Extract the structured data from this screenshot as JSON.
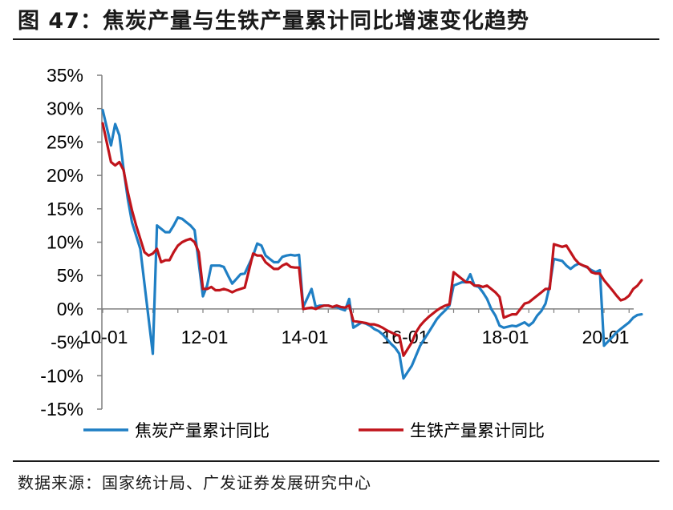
{
  "figure": {
    "title": "图 47：焦炭产量与生铁产量累计同比增速变化趋势",
    "source": "数据来源：国家统计局、广发证券发展研究中心"
  },
  "colors": {
    "coke": "#1f7fc4",
    "iron": "#c0141b",
    "axis": "#7f7f7f"
  },
  "chart_data": {
    "type": "line",
    "title": "",
    "xlabel": "",
    "ylabel": "",
    "ylim": [
      -15,
      35
    ],
    "yticks": [
      35,
      30,
      25,
      20,
      15,
      10,
      5,
      0,
      -5,
      -10,
      -15
    ],
    "ytick_labels": [
      "35%",
      "30%",
      "25%",
      "20%",
      "15%",
      "10%",
      "5%",
      "0%",
      "-5%",
      "-10%",
      "-15%"
    ],
    "x_start": "2010-01",
    "xticks": [
      "2010-01",
      "2012-01",
      "2014-01",
      "2016-01",
      "2018-01",
      "2020-01"
    ],
    "xtick_labels": [
      "10-01",
      "12-01",
      "14-01",
      "16-01",
      "18-01",
      "20-01"
    ],
    "grid": false,
    "legend": "bottom",
    "series": [
      {
        "name": "焦炭产量累计同比",
        "color": "#1f7fc4",
        "points": [
          [
            "2010-01",
            29.8
          ],
          [
            "2010-03",
            24.5
          ],
          [
            "2010-04",
            27.7
          ],
          [
            "2010-05",
            26.0
          ],
          [
            "2010-06",
            21.0
          ],
          [
            "2010-07",
            16.5
          ],
          [
            "2010-08",
            13.0
          ],
          [
            "2010-09",
            11.0
          ],
          [
            "2010-10",
            9.0
          ],
          [
            "2011-01",
            -6.7
          ],
          [
            "2011-02",
            12.5
          ],
          [
            "2011-03",
            12.0
          ],
          [
            "2011-04",
            11.5
          ],
          [
            "2011-05",
            11.5
          ],
          [
            "2011-06",
            12.5
          ],
          [
            "2011-07",
            13.7
          ],
          [
            "2011-08",
            13.5
          ],
          [
            "2011-09",
            13.0
          ],
          [
            "2011-10",
            12.5
          ],
          [
            "2011-11",
            11.8
          ],
          [
            "2012-01",
            1.9
          ],
          [
            "2012-02",
            3.5
          ],
          [
            "2012-03",
            6.5
          ],
          [
            "2012-04",
            6.5
          ],
          [
            "2012-05",
            6.5
          ],
          [
            "2012-06",
            6.3
          ],
          [
            "2012-07",
            5.0
          ],
          [
            "2012-08",
            3.8
          ],
          [
            "2012-09",
            4.5
          ],
          [
            "2012-10",
            5.2
          ],
          [
            "2012-11",
            5.3
          ],
          [
            "2013-01",
            8.0
          ],
          [
            "2013-02",
            9.8
          ],
          [
            "2013-03",
            9.5
          ],
          [
            "2013-04",
            8.0
          ],
          [
            "2013-05",
            7.5
          ],
          [
            "2013-06",
            7.0
          ],
          [
            "2013-07",
            7.0
          ],
          [
            "2013-08",
            7.8
          ],
          [
            "2013-09",
            8.0
          ],
          [
            "2013-10",
            8.1
          ],
          [
            "2013-11",
            8.0
          ],
          [
            "2013-12",
            8.1
          ],
          [
            "2014-01",
            0.3
          ],
          [
            "2014-03",
            3.0
          ],
          [
            "2014-04",
            0.3
          ],
          [
            "2014-05",
            0.5
          ],
          [
            "2014-06",
            0.5
          ],
          [
            "2014-07",
            0.5
          ],
          [
            "2014-08",
            0.3
          ],
          [
            "2014-09",
            0.3
          ],
          [
            "2014-10",
            0.0
          ],
          [
            "2014-11",
            -0.2
          ],
          [
            "2014-12",
            1.5
          ],
          [
            "2015-01",
            -2.8
          ],
          [
            "2015-03",
            -2.0
          ],
          [
            "2015-04",
            -2.2
          ],
          [
            "2015-05",
            -2.5
          ],
          [
            "2015-06",
            -3.0
          ],
          [
            "2015-07",
            -3.3
          ],
          [
            "2015-08",
            -3.8
          ],
          [
            "2015-09",
            -4.5
          ],
          [
            "2015-10",
            -5.2
          ],
          [
            "2015-11",
            -5.8
          ],
          [
            "2015-12",
            -6.7
          ],
          [
            "2016-01",
            -10.4
          ],
          [
            "2016-03",
            -8.5
          ],
          [
            "2016-04",
            -7.0
          ],
          [
            "2016-05",
            -5.5
          ],
          [
            "2016-06",
            -4.5
          ],
          [
            "2016-07",
            -3.5
          ],
          [
            "2016-08",
            -2.5
          ],
          [
            "2016-09",
            -1.5
          ],
          [
            "2016-10",
            -0.8
          ],
          [
            "2016-11",
            -0.2
          ],
          [
            "2016-12",
            0.5
          ],
          [
            "2017-01",
            3.5
          ],
          [
            "2017-03",
            4.0
          ],
          [
            "2017-04",
            4.0
          ],
          [
            "2017-05",
            5.2
          ],
          [
            "2017-06",
            3.5
          ],
          [
            "2017-07",
            3.3
          ],
          [
            "2017-08",
            2.5
          ],
          [
            "2017-09",
            1.5
          ],
          [
            "2017-10",
            0.0
          ],
          [
            "2017-11",
            -1.0
          ],
          [
            "2017-12",
            -2.5
          ],
          [
            "2018-01",
            -2.8
          ],
          [
            "2018-03",
            -2.5
          ],
          [
            "2018-04",
            -2.6
          ],
          [
            "2018-05",
            -2.3
          ],
          [
            "2018-06",
            -2.0
          ],
          [
            "2018-07",
            -2.5
          ],
          [
            "2018-08",
            -2.0
          ],
          [
            "2018-09",
            -1.0
          ],
          [
            "2018-10",
            -0.3
          ],
          [
            "2018-11",
            0.8
          ],
          [
            "2018-12",
            3.5
          ],
          [
            "2019-01",
            7.5
          ],
          [
            "2019-03",
            7.2
          ],
          [
            "2019-04",
            6.5
          ],
          [
            "2019-05",
            6.0
          ],
          [
            "2019-06",
            6.5
          ],
          [
            "2019-07",
            6.8
          ],
          [
            "2019-08",
            6.5
          ],
          [
            "2019-09",
            6.2
          ],
          [
            "2019-10",
            5.8
          ],
          [
            "2019-11",
            5.5
          ],
          [
            "2019-12",
            5.8
          ],
          [
            "2020-01",
            -5.5
          ],
          [
            "2020-03",
            -4.2
          ],
          [
            "2020-04",
            -3.5
          ],
          [
            "2020-05",
            -3.0
          ],
          [
            "2020-06",
            -2.5
          ],
          [
            "2020-07",
            -2.0
          ],
          [
            "2020-08",
            -1.3
          ],
          [
            "2020-09",
            -0.9
          ],
          [
            "2020-10",
            -0.8
          ]
        ]
      },
      {
        "name": "生铁产量累计同比",
        "color": "#c0141b",
        "points": [
          [
            "2010-01",
            27.8
          ],
          [
            "2010-03",
            22.0
          ],
          [
            "2010-04",
            21.5
          ],
          [
            "2010-05",
            22.0
          ],
          [
            "2010-06",
            20.8
          ],
          [
            "2010-07",
            17.5
          ],
          [
            "2010-08",
            14.8
          ],
          [
            "2010-09",
            12.5
          ],
          [
            "2010-10",
            10.5
          ],
          [
            "2010-11",
            8.5
          ],
          [
            "2010-12",
            8.0
          ],
          [
            "2011-01",
            8.3
          ],
          [
            "2011-02",
            9.0
          ],
          [
            "2011-03",
            7.0
          ],
          [
            "2011-04",
            7.3
          ],
          [
            "2011-05",
            7.3
          ],
          [
            "2011-06",
            8.5
          ],
          [
            "2011-07",
            9.5
          ],
          [
            "2011-08",
            10.0
          ],
          [
            "2011-09",
            10.3
          ],
          [
            "2011-10",
            10.5
          ],
          [
            "2011-11",
            10.0
          ],
          [
            "2011-12",
            8.5
          ],
          [
            "2012-01",
            3.0
          ],
          [
            "2012-02",
            3.0
          ],
          [
            "2012-03",
            3.3
          ],
          [
            "2012-04",
            2.8
          ],
          [
            "2012-05",
            2.8
          ],
          [
            "2012-06",
            3.0
          ],
          [
            "2012-07",
            2.8
          ],
          [
            "2012-08",
            2.5
          ],
          [
            "2012-09",
            2.8
          ],
          [
            "2012-10",
            3.0
          ],
          [
            "2012-11",
            3.2
          ],
          [
            "2013-01",
            8.3
          ],
          [
            "2013-02",
            8.0
          ],
          [
            "2013-03",
            8.0
          ],
          [
            "2013-04",
            7.0
          ],
          [
            "2013-05",
            6.5
          ],
          [
            "2013-06",
            6.0
          ],
          [
            "2013-07",
            6.0
          ],
          [
            "2013-08",
            6.5
          ],
          [
            "2013-09",
            6.8
          ],
          [
            "2013-10",
            6.3
          ],
          [
            "2013-11",
            6.2
          ],
          [
            "2013-12",
            6.2
          ],
          [
            "2014-01",
            0.0
          ],
          [
            "2014-03",
            0.2
          ],
          [
            "2014-04",
            0.0
          ],
          [
            "2014-05",
            0.3
          ],
          [
            "2014-06",
            0.5
          ],
          [
            "2014-07",
            0.5
          ],
          [
            "2014-08",
            0.3
          ],
          [
            "2014-09",
            0.5
          ],
          [
            "2014-10",
            0.3
          ],
          [
            "2014-11",
            0.2
          ],
          [
            "2014-12",
            0.5
          ],
          [
            "2015-01",
            -1.8
          ],
          [
            "2015-03",
            -2.0
          ],
          [
            "2015-04",
            -2.1
          ],
          [
            "2015-05",
            -2.3
          ],
          [
            "2015-06",
            -2.3
          ],
          [
            "2015-07",
            -2.5
          ],
          [
            "2015-08",
            -2.8
          ],
          [
            "2015-09",
            -3.2
          ],
          [
            "2015-10",
            -3.5
          ],
          [
            "2015-11",
            -3.8
          ],
          [
            "2015-12",
            -4.0
          ],
          [
            "2016-01",
            -7.0
          ],
          [
            "2016-03",
            -5.0
          ],
          [
            "2016-04",
            -3.5
          ],
          [
            "2016-05",
            -2.5
          ],
          [
            "2016-06",
            -1.8
          ],
          [
            "2016-07",
            -1.2
          ],
          [
            "2016-08",
            -0.7
          ],
          [
            "2016-09",
            -0.2
          ],
          [
            "2016-10",
            0.2
          ],
          [
            "2016-11",
            0.5
          ],
          [
            "2016-12",
            0.7
          ],
          [
            "2017-01",
            5.5
          ],
          [
            "2017-03",
            4.5
          ],
          [
            "2017-04",
            4.0
          ],
          [
            "2017-05",
            4.0
          ],
          [
            "2017-06",
            3.5
          ],
          [
            "2017-07",
            3.5
          ],
          [
            "2017-08",
            3.3
          ],
          [
            "2017-09",
            3.5
          ],
          [
            "2017-10",
            3.0
          ],
          [
            "2017-11",
            2.5
          ],
          [
            "2017-12",
            1.8
          ],
          [
            "2018-01",
            -1.3
          ],
          [
            "2018-03",
            -0.8
          ],
          [
            "2018-04",
            -0.8
          ],
          [
            "2018-05",
            0.0
          ],
          [
            "2018-06",
            0.8
          ],
          [
            "2018-07",
            1.0
          ],
          [
            "2018-08",
            1.5
          ],
          [
            "2018-09",
            2.0
          ],
          [
            "2018-10",
            2.5
          ],
          [
            "2018-11",
            3.0
          ],
          [
            "2018-12",
            3.0
          ],
          [
            "2019-01",
            9.7
          ],
          [
            "2019-03",
            9.3
          ],
          [
            "2019-04",
            9.5
          ],
          [
            "2019-05",
            8.5
          ],
          [
            "2019-06",
            7.5
          ],
          [
            "2019-07",
            6.8
          ],
          [
            "2019-08",
            6.5
          ],
          [
            "2019-09",
            6.3
          ],
          [
            "2019-10",
            5.5
          ],
          [
            "2019-11",
            5.3
          ],
          [
            "2019-12",
            5.3
          ],
          [
            "2020-01",
            4.3
          ],
          [
            "2020-03",
            2.8
          ],
          [
            "2020-04",
            2.0
          ],
          [
            "2020-05",
            1.3
          ],
          [
            "2020-06",
            1.5
          ],
          [
            "2020-07",
            2.0
          ],
          [
            "2020-08",
            3.0
          ],
          [
            "2020-09",
            3.5
          ],
          [
            "2020-10",
            4.3
          ]
        ]
      }
    ]
  }
}
